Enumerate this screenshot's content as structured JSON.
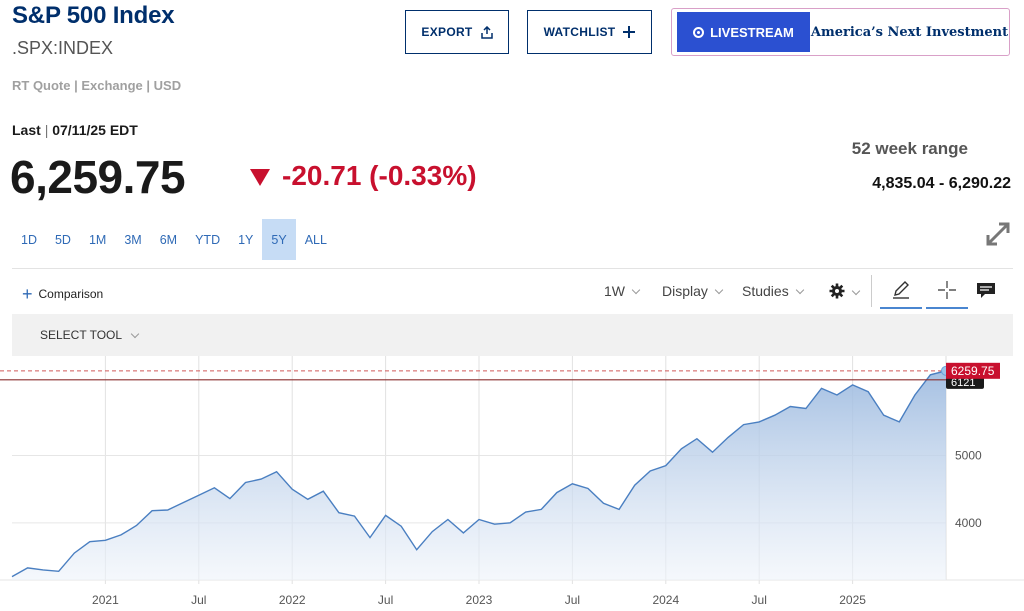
{
  "header": {
    "title": "S&P 500 Index",
    "ticker": ".SPX:INDEX",
    "subinfo": "RT Quote | Exchange | USD"
  },
  "actions": {
    "export_label": "EXPORT",
    "watchlist_label": "WATCHLIST",
    "livestream_label": "LIVESTREAM",
    "promo_text": "America’s Next Investment"
  },
  "quote": {
    "last_label": "Last",
    "sep": "|",
    "last_time": "07/11/25 EDT",
    "price": "6,259.75",
    "change": "-20.71 (-0.33%)",
    "direction": "down",
    "range_label": "52 week range",
    "range_value": "4,835.04 - 6,290.22"
  },
  "periods": [
    "1D",
    "5D",
    "1M",
    "3M",
    "6M",
    "YTD",
    "1Y",
    "5Y",
    "ALL"
  ],
  "active_period": "5Y",
  "toolbar": {
    "comparison_label": "Comparison",
    "interval_label": "1W",
    "display_label": "Display",
    "studies_label": "Studies",
    "select_tool_label": "SELECT TOOL"
  },
  "colors": {
    "brand": "#002f6c",
    "link": "#2f6ab6",
    "down": "#c8102e",
    "line": "#4a7fc1",
    "live": "#2b50d1"
  },
  "chart_data": {
    "type": "area",
    "x_tick_labels": [
      "2021",
      "Jul",
      "2022",
      "Jul",
      "2023",
      "Jul",
      "2024",
      "Jul",
      "2025"
    ],
    "y_tick_labels": [
      "4000",
      "5000"
    ],
    "last_value_tag": "6259.75",
    "hidden_tag_text": "6121",
    "series": [
      {
        "x": [
          "2020-07",
          "2020-08",
          "2020-09",
          "2020-10",
          "2020-11",
          "2020-12",
          "2021-01",
          "2021-02",
          "2021-03",
          "2021-04",
          "2021-05",
          "2021-06",
          "2021-07",
          "2021-08",
          "2021-09",
          "2021-10",
          "2021-11",
          "2021-12",
          "2022-01",
          "2022-02",
          "2022-03",
          "2022-04",
          "2022-05",
          "2022-06",
          "2022-07",
          "2022-08",
          "2022-09",
          "2022-10",
          "2022-11",
          "2022-12",
          "2023-01",
          "2023-02",
          "2023-03",
          "2023-04",
          "2023-05",
          "2023-06",
          "2023-07",
          "2023-08",
          "2023-09",
          "2023-10",
          "2023-11",
          "2023-12",
          "2024-01",
          "2024-02",
          "2024-03",
          "2024-04",
          "2024-05",
          "2024-06",
          "2024-07",
          "2024-08",
          "2024-09",
          "2024-10",
          "2024-11",
          "2024-12",
          "2025-01",
          "2025-02",
          "2025-03",
          "2025-04",
          "2025-05",
          "2025-06",
          "2025-07"
        ],
        "values": [
          3200,
          3330,
          3300,
          3280,
          3550,
          3720,
          3740,
          3820,
          3960,
          4180,
          4190,
          4300,
          4410,
          4520,
          4360,
          4600,
          4650,
          4760,
          4500,
          4350,
          4470,
          4150,
          4100,
          3780,
          4110,
          3950,
          3600,
          3870,
          4050,
          3850,
          4050,
          3980,
          4000,
          4160,
          4200,
          4450,
          4580,
          4510,
          4290,
          4200,
          4560,
          4770,
          4850,
          5100,
          5250,
          5050,
          5270,
          5460,
          5500,
          5600,
          5730,
          5700,
          6000,
          5900,
          6050,
          5950,
          5600,
          5500,
          5900,
          6200,
          6259.75
        ]
      }
    ]
  }
}
